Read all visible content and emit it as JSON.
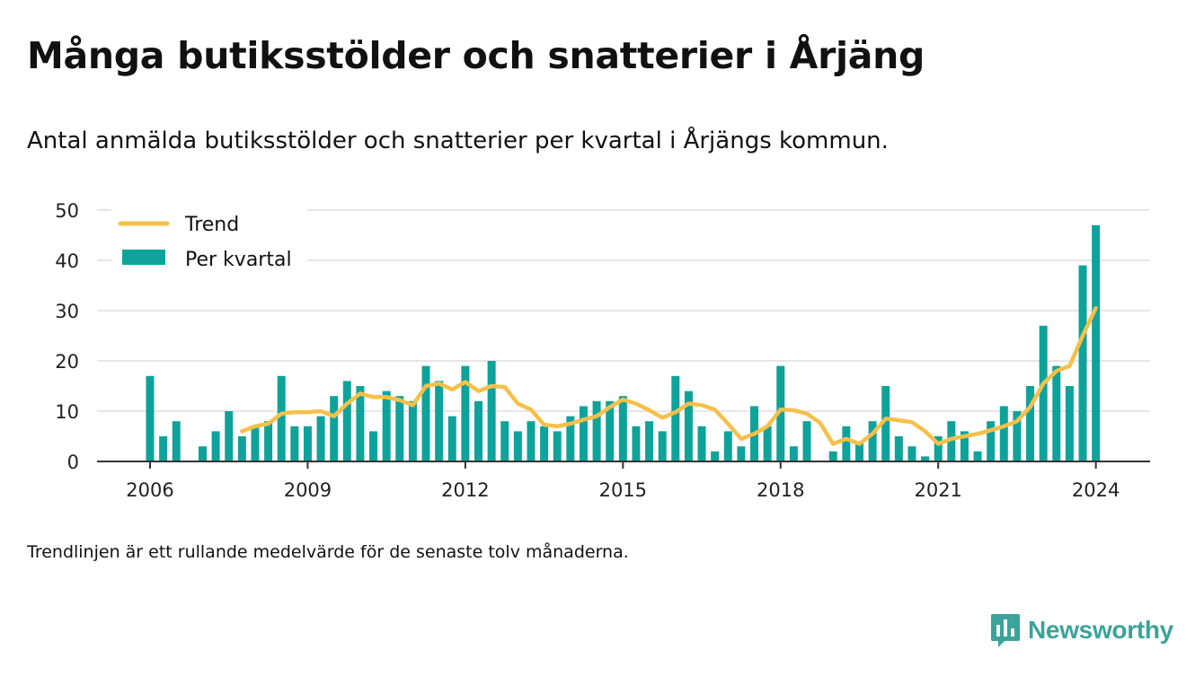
{
  "title": "Många butiksstölder och snatterier i Årjäng",
  "subtitle": "Antal anmälda butiksstölder och snatterier per kvartal i Årjängs kommun.",
  "note": "Trendlinjen är ett rullande medelvärde för de senaste tolv månaderna.",
  "brand": {
    "name": "Newsworthy",
    "icon": "newsworthy-logo-icon",
    "color": "#3aa39a"
  },
  "colors": {
    "bars": "#0ea39a",
    "trend": "#f5c04a",
    "grid": "#dddddd",
    "axis": "#333333"
  },
  "chart_data": {
    "type": "bar",
    "x_unit": "quarter",
    "x_start": "2006 Q1",
    "ylim": [
      0,
      50
    ],
    "yticks": [
      0,
      10,
      20,
      30,
      40,
      50
    ],
    "xticks": [
      "2006",
      "2009",
      "2012",
      "2015",
      "2018",
      "2021",
      "2024"
    ],
    "grid": true,
    "legend_placement": "top-left",
    "series": [
      {
        "name": "Per kvartal",
        "kind": "bar",
        "values": [
          17,
          5,
          8,
          0,
          3,
          6,
          10,
          5,
          7,
          8,
          17,
          7,
          7,
          9,
          13,
          16,
          15,
          6,
          14,
          13,
          12,
          19,
          16,
          9,
          19,
          12,
          20,
          8,
          6,
          8,
          7,
          6,
          9,
          11,
          12,
          12,
          13,
          7,
          8,
          6,
          17,
          14,
          7,
          2,
          6,
          3,
          11,
          7,
          19,
          3,
          8,
          0,
          2,
          7,
          4,
          8,
          15,
          5,
          3,
          1,
          5,
          8,
          6,
          2,
          8,
          11,
          10,
          15,
          27,
          19,
          15,
          39,
          47
        ]
      },
      {
        "name": "Trend",
        "kind": "line",
        "values": [
          null,
          null,
          null,
          null,
          null,
          null,
          null,
          6,
          7,
          7.5,
          9.5,
          9.8,
          9.8,
          10,
          9,
          11.5,
          13.5,
          12.8,
          12.8,
          12.2,
          11.2,
          15,
          15.5,
          14.3,
          15.8,
          14,
          15,
          14.8,
          11.5,
          10.3,
          7.3,
          7,
          7.5,
          8.3,
          9,
          10.8,
          12.3,
          11.5,
          10.2,
          8.7,
          9.8,
          11.5,
          11.2,
          10.3,
          7.5,
          4.5,
          5.5,
          7,
          10.3,
          10.2,
          9.5,
          7.7,
          3.5,
          4.5,
          3.5,
          5.5,
          8.5,
          8.2,
          7.8,
          6,
          3.5,
          4.5,
          5,
          5.5,
          6.2,
          7,
          8,
          10.8,
          15.5,
          18,
          19,
          25,
          30.5
        ]
      }
    ]
  }
}
